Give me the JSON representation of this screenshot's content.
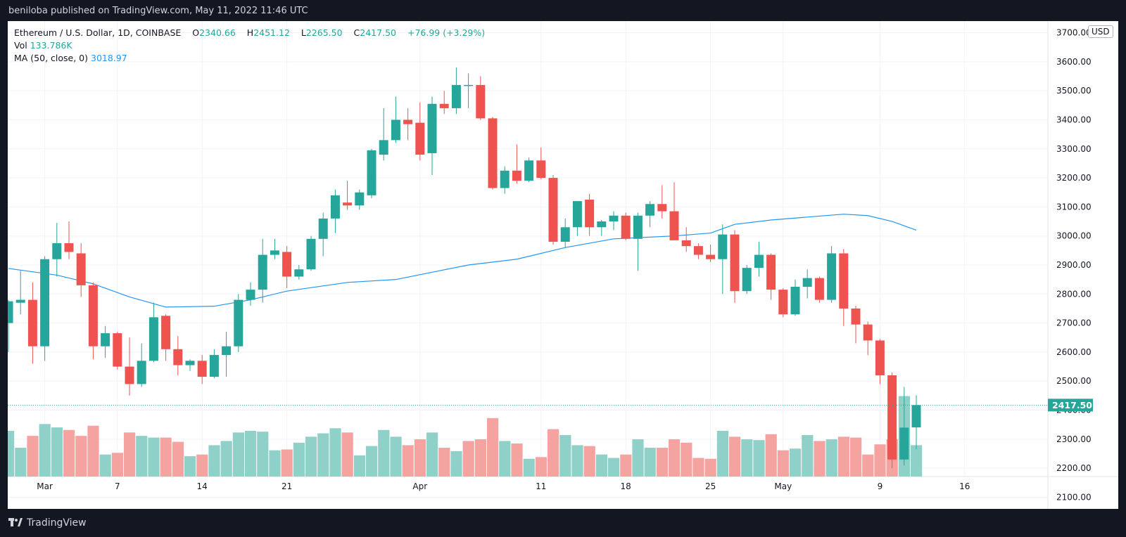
{
  "header": {
    "published_text": "beniloba published on TradingView.com, May 11, 2022 11:46 UTC"
  },
  "legend": {
    "symbol": "Ethereum / U.S. Dollar, 1D, COINBASE",
    "open_label": "O",
    "open": "2340.66",
    "high_label": "H",
    "high": "2451.12",
    "low_label": "L",
    "low": "2265.50",
    "close_label": "C",
    "close": "2417.50",
    "change": "+76.99 (+3.29%)",
    "vol_label": "Vol",
    "vol_value": "133.786K",
    "ma_label": "MA (50, close, 0)",
    "ma_value": "3018.97"
  },
  "currency_badge": "USD",
  "footer": {
    "brand": "TradingView"
  },
  "colors": {
    "up": "#26a69a",
    "down": "#ef5350",
    "up_vol": "#8fd1c9",
    "down_vol": "#f4a3a1",
    "ma": "#2196f3",
    "price_tag": "#26a69a"
  },
  "chart_data": {
    "type": "candlestick",
    "y_axis_ticks": [
      "3700.00",
      "3600.00",
      "3500.00",
      "3400.00",
      "3300.00",
      "3200.00",
      "3100.00",
      "3000.00",
      "2900.00",
      "2800.00",
      "2700.00",
      "2600.00",
      "2500.00",
      "2400.00",
      "2300.00",
      "2200.00",
      "2100.00"
    ],
    "y_range": [
      2060,
      3740
    ],
    "last_price": "2417.50",
    "x_tick_labels": [
      {
        "label": "Mar",
        "index": 3
      },
      {
        "label": "7",
        "index": 9
      },
      {
        "label": "14",
        "index": 16
      },
      {
        "label": "21",
        "index": 23
      },
      {
        "label": "Apr",
        "index": 34
      },
      {
        "label": "11",
        "index": 44
      },
      {
        "label": "18",
        "index": 51
      },
      {
        "label": "25",
        "index": 58
      },
      {
        "label": "May",
        "index": 64
      },
      {
        "label": "9",
        "index": 72
      },
      {
        "label": "16",
        "index": 79
      }
    ],
    "candles": [
      {
        "o": 2700,
        "h": 2780,
        "l": 2600,
        "c": 2775
      },
      {
        "o": 2770,
        "h": 2880,
        "l": 2730,
        "c": 2780
      },
      {
        "o": 2780,
        "h": 2840,
        "l": 2560,
        "c": 2620
      },
      {
        "o": 2620,
        "h": 2930,
        "l": 2570,
        "c": 2920
      },
      {
        "o": 2920,
        "h": 3045,
        "l": 2860,
        "c": 2975
      },
      {
        "o": 2975,
        "h": 3050,
        "l": 2920,
        "c": 2945
      },
      {
        "o": 2940,
        "h": 2975,
        "l": 2790,
        "c": 2830
      },
      {
        "o": 2830,
        "h": 2840,
        "l": 2575,
        "c": 2620
      },
      {
        "o": 2620,
        "h": 2690,
        "l": 2580,
        "c": 2665
      },
      {
        "o": 2665,
        "h": 2670,
        "l": 2540,
        "c": 2550
      },
      {
        "o": 2550,
        "h": 2650,
        "l": 2450,
        "c": 2490
      },
      {
        "o": 2490,
        "h": 2630,
        "l": 2480,
        "c": 2570
      },
      {
        "o": 2570,
        "h": 2770,
        "l": 2565,
        "c": 2720
      },
      {
        "o": 2725,
        "h": 2730,
        "l": 2570,
        "c": 2610
      },
      {
        "o": 2610,
        "h": 2655,
        "l": 2520,
        "c": 2555
      },
      {
        "o": 2555,
        "h": 2575,
        "l": 2535,
        "c": 2570
      },
      {
        "o": 2570,
        "h": 2590,
        "l": 2490,
        "c": 2515
      },
      {
        "o": 2515,
        "h": 2610,
        "l": 2510,
        "c": 2590
      },
      {
        "o": 2590,
        "h": 2670,
        "l": 2515,
        "c": 2620
      },
      {
        "o": 2620,
        "h": 2800,
        "l": 2600,
        "c": 2780
      },
      {
        "o": 2780,
        "h": 2840,
        "l": 2760,
        "c": 2815
      },
      {
        "o": 2815,
        "h": 2990,
        "l": 2770,
        "c": 2935
      },
      {
        "o": 2935,
        "h": 2990,
        "l": 2920,
        "c": 2950
      },
      {
        "o": 2945,
        "h": 2965,
        "l": 2820,
        "c": 2860
      },
      {
        "o": 2860,
        "h": 2900,
        "l": 2850,
        "c": 2885
      },
      {
        "o": 2885,
        "h": 3000,
        "l": 2880,
        "c": 2990
      },
      {
        "o": 2990,
        "h": 3080,
        "l": 2930,
        "c": 3060
      },
      {
        "o": 3060,
        "h": 3160,
        "l": 3010,
        "c": 3140
      },
      {
        "o": 3115,
        "h": 3190,
        "l": 3090,
        "c": 3105
      },
      {
        "o": 3105,
        "h": 3160,
        "l": 3090,
        "c": 3150
      },
      {
        "o": 3140,
        "h": 3300,
        "l": 3130,
        "c": 3295
      },
      {
        "o": 3280,
        "h": 3440,
        "l": 3260,
        "c": 3330
      },
      {
        "o": 3330,
        "h": 3480,
        "l": 3320,
        "c": 3400
      },
      {
        "o": 3400,
        "h": 3440,
        "l": 3330,
        "c": 3385
      },
      {
        "o": 3390,
        "h": 3460,
        "l": 3260,
        "c": 3280
      },
      {
        "o": 3285,
        "h": 3480,
        "l": 3210,
        "c": 3455
      },
      {
        "o": 3455,
        "h": 3500,
        "l": 3420,
        "c": 3440
      },
      {
        "o": 3440,
        "h": 3580,
        "l": 3420,
        "c": 3520
      },
      {
        "o": 3520,
        "h": 3560,
        "l": 3440,
        "c": 3520
      },
      {
        "o": 3520,
        "h": 3550,
        "l": 3400,
        "c": 3405
      },
      {
        "o": 3405,
        "h": 3410,
        "l": 3160,
        "c": 3165
      },
      {
        "o": 3165,
        "h": 3240,
        "l": 3145,
        "c": 3225
      },
      {
        "o": 3225,
        "h": 3315,
        "l": 3180,
        "c": 3190
      },
      {
        "o": 3190,
        "h": 3270,
        "l": 3185,
        "c": 3260
      },
      {
        "o": 3260,
        "h": 3305,
        "l": 3195,
        "c": 3200
      },
      {
        "o": 3200,
        "h": 3210,
        "l": 2970,
        "c": 2980
      },
      {
        "o": 2980,
        "h": 3060,
        "l": 2960,
        "c": 3030
      },
      {
        "o": 3030,
        "h": 3120,
        "l": 3000,
        "c": 3120
      },
      {
        "o": 3125,
        "h": 3145,
        "l": 3000,
        "c": 3030
      },
      {
        "o": 3030,
        "h": 3055,
        "l": 3000,
        "c": 3050
      },
      {
        "o": 3050,
        "h": 3085,
        "l": 3020,
        "c": 3070
      },
      {
        "o": 3070,
        "h": 3080,
        "l": 2985,
        "c": 2990
      },
      {
        "o": 2990,
        "h": 3080,
        "l": 2880,
        "c": 3070
      },
      {
        "o": 3070,
        "h": 3120,
        "l": 3030,
        "c": 3110
      },
      {
        "o": 3110,
        "h": 3175,
        "l": 3060,
        "c": 3085
      },
      {
        "o": 3085,
        "h": 3185,
        "l": 2990,
        "c": 2985
      },
      {
        "o": 2985,
        "h": 3030,
        "l": 2945,
        "c": 2965
      },
      {
        "o": 2965,
        "h": 2975,
        "l": 2920,
        "c": 2935
      },
      {
        "o": 2935,
        "h": 2970,
        "l": 2910,
        "c": 2920
      },
      {
        "o": 2920,
        "h": 3040,
        "l": 2800,
        "c": 3005
      },
      {
        "o": 3005,
        "h": 3020,
        "l": 2770,
        "c": 2810
      },
      {
        "o": 2810,
        "h": 2900,
        "l": 2800,
        "c": 2890
      },
      {
        "o": 2890,
        "h": 2980,
        "l": 2860,
        "c": 2935
      },
      {
        "o": 2935,
        "h": 2940,
        "l": 2780,
        "c": 2815
      },
      {
        "o": 2815,
        "h": 2820,
        "l": 2720,
        "c": 2730
      },
      {
        "o": 2730,
        "h": 2850,
        "l": 2725,
        "c": 2825
      },
      {
        "o": 2825,
        "h": 2885,
        "l": 2785,
        "c": 2855
      },
      {
        "o": 2855,
        "h": 2860,
        "l": 2770,
        "c": 2780
      },
      {
        "o": 2780,
        "h": 2965,
        "l": 2770,
        "c": 2940
      },
      {
        "o": 2940,
        "h": 2955,
        "l": 2690,
        "c": 2750
      },
      {
        "o": 2750,
        "h": 2760,
        "l": 2630,
        "c": 2695
      },
      {
        "o": 2695,
        "h": 2705,
        "l": 2590,
        "c": 2640
      },
      {
        "o": 2640,
        "h": 2645,
        "l": 2490,
        "c": 2520
      },
      {
        "o": 2520,
        "h": 2530,
        "l": 2200,
        "c": 2230
      },
      {
        "o": 2230,
        "h": 2480,
        "l": 2210,
        "c": 2340
      },
      {
        "o": 2340.66,
        "h": 2451.12,
        "l": 2265.5,
        "c": 2417.5
      }
    ],
    "volume": [
      {
        "v": 2.7,
        "up": true
      },
      {
        "v": 1.7,
        "up": true
      },
      {
        "v": 2.4,
        "up": false
      },
      {
        "v": 3.1,
        "up": true
      },
      {
        "v": 2.9,
        "up": true
      },
      {
        "v": 2.75,
        "up": false
      },
      {
        "v": 2.4,
        "up": false
      },
      {
        "v": 3.0,
        "up": false
      },
      {
        "v": 1.3,
        "up": true
      },
      {
        "v": 1.4,
        "up": false
      },
      {
        "v": 2.6,
        "up": false
      },
      {
        "v": 2.4,
        "up": true
      },
      {
        "v": 2.3,
        "up": true
      },
      {
        "v": 2.3,
        "up": false
      },
      {
        "v": 2.05,
        "up": false
      },
      {
        "v": 1.2,
        "up": true
      },
      {
        "v": 1.3,
        "up": false
      },
      {
        "v": 1.85,
        "up": true
      },
      {
        "v": 2.1,
        "up": true
      },
      {
        "v": 2.6,
        "up": true
      },
      {
        "v": 2.7,
        "up": true
      },
      {
        "v": 2.65,
        "up": true
      },
      {
        "v": 1.55,
        "up": true
      },
      {
        "v": 1.6,
        "up": false
      },
      {
        "v": 2.0,
        "up": true
      },
      {
        "v": 2.35,
        "up": true
      },
      {
        "v": 2.55,
        "up": true
      },
      {
        "v": 2.85,
        "up": true
      },
      {
        "v": 2.6,
        "up": false
      },
      {
        "v": 1.25,
        "up": true
      },
      {
        "v": 1.8,
        "up": true
      },
      {
        "v": 2.75,
        "up": true
      },
      {
        "v": 2.35,
        "up": true
      },
      {
        "v": 1.85,
        "up": false
      },
      {
        "v": 2.2,
        "up": false
      },
      {
        "v": 2.6,
        "up": true
      },
      {
        "v": 1.7,
        "up": false
      },
      {
        "v": 1.5,
        "up": true
      },
      {
        "v": 2.1,
        "up": false
      },
      {
        "v": 2.2,
        "up": false
      },
      {
        "v": 3.45,
        "up": false
      },
      {
        "v": 2.1,
        "up": true
      },
      {
        "v": 1.95,
        "up": false
      },
      {
        "v": 1.05,
        "up": true
      },
      {
        "v": 1.15,
        "up": false
      },
      {
        "v": 2.8,
        "up": false
      },
      {
        "v": 2.45,
        "up": true
      },
      {
        "v": 1.85,
        "up": true
      },
      {
        "v": 1.8,
        "up": false
      },
      {
        "v": 1.3,
        "up": true
      },
      {
        "v": 1.1,
        "up": true
      },
      {
        "v": 1.3,
        "up": false
      },
      {
        "v": 2.2,
        "up": true
      },
      {
        "v": 1.7,
        "up": true
      },
      {
        "v": 1.7,
        "up": false
      },
      {
        "v": 2.2,
        "up": false
      },
      {
        "v": 2.0,
        "up": false
      },
      {
        "v": 1.1,
        "up": false
      },
      {
        "v": 1.05,
        "up": false
      },
      {
        "v": 2.7,
        "up": true
      },
      {
        "v": 2.35,
        "up": false
      },
      {
        "v": 2.2,
        "up": true
      },
      {
        "v": 2.15,
        "up": true
      },
      {
        "v": 2.5,
        "up": false
      },
      {
        "v": 1.55,
        "up": false
      },
      {
        "v": 1.65,
        "up": true
      },
      {
        "v": 2.45,
        "up": true
      },
      {
        "v": 2.1,
        "up": false
      },
      {
        "v": 2.2,
        "up": true
      },
      {
        "v": 2.35,
        "up": false
      },
      {
        "v": 2.3,
        "up": false
      },
      {
        "v": 1.3,
        "up": false
      },
      {
        "v": 1.9,
        "up": false
      },
      {
        "v": 2.2,
        "up": false
      },
      {
        "v": 4.75,
        "up": true
      },
      {
        "v": 1.85,
        "up": true
      }
    ],
    "ma50": [
      {
        "i": 0,
        "v": 2888
      },
      {
        "i": 4,
        "v": 2865
      },
      {
        "i": 7,
        "v": 2835
      },
      {
        "i": 10,
        "v": 2790
      },
      {
        "i": 13,
        "v": 2755
      },
      {
        "i": 17,
        "v": 2758
      },
      {
        "i": 20,
        "v": 2780
      },
      {
        "i": 23,
        "v": 2810
      },
      {
        "i": 28,
        "v": 2840
      },
      {
        "i": 32,
        "v": 2850
      },
      {
        "i": 35,
        "v": 2875
      },
      {
        "i": 38,
        "v": 2900
      },
      {
        "i": 42,
        "v": 2920
      },
      {
        "i": 46,
        "v": 2960
      },
      {
        "i": 50,
        "v": 2990
      },
      {
        "i": 55,
        "v": 3000
      },
      {
        "i": 58,
        "v": 3010
      },
      {
        "i": 60,
        "v": 3040
      },
      {
        "i": 63,
        "v": 3055
      },
      {
        "i": 66,
        "v": 3065
      },
      {
        "i": 69,
        "v": 3075
      },
      {
        "i": 71,
        "v": 3070
      },
      {
        "i": 73,
        "v": 3050
      },
      {
        "i": 75,
        "v": 3020
      }
    ]
  }
}
